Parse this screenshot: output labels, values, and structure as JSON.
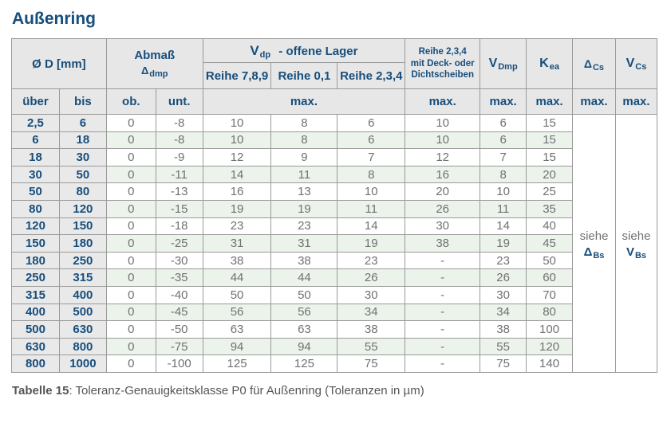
{
  "title": "Außenring",
  "colors": {
    "accent_navy": "#174e7c",
    "row_alt_green": "#ebf3eb",
    "header_gray": "#e7e7e7",
    "range_col_gray": "#e9e9e9",
    "border_gray": "#9a9a9a",
    "value_text_gray": "#717173"
  },
  "table": {
    "header": {
      "diameter": "Ø D  [mm]",
      "abmass_title": "Abmaß",
      "abmass_sym": "Δ",
      "abmass_sub": "dmp",
      "vdp_sym": "V",
      "vdp_sub": "dp",
      "vdp_suffix": "-  offene Lager",
      "reihe_789": "Reihe 7,8,9",
      "reihe_01": "Reihe 0,1",
      "reihe_234": "Reihe 2,3,4",
      "deck_line1": "Reihe 2,3,4",
      "deck_line2": "mit Deck- oder",
      "deck_line3": "Dichtscheiben",
      "vdmp_sym": "V",
      "vdmp_sub": "Dmp",
      "kea_sym": "K",
      "kea_sub": "ea",
      "delta_cs_sym": "Δ",
      "delta_cs_sub": "Cs",
      "v_cs_sym": "V",
      "v_cs_sub": "Cs",
      "col_ueber": "über",
      "col_bis": "bis",
      "col_ob": "ob.",
      "col_unt": "unt.",
      "max_label": "max."
    },
    "rows": [
      [
        "2,5",
        "6",
        "0",
        "-8",
        "10",
        "8",
        "6",
        "10",
        "6",
        "15"
      ],
      [
        "6",
        "18",
        "0",
        "-8",
        "10",
        "8",
        "6",
        "10",
        "6",
        "15"
      ],
      [
        "18",
        "30",
        "0",
        "-9",
        "12",
        "9",
        "7",
        "12",
        "7",
        "15"
      ],
      [
        "30",
        "50",
        "0",
        "-11",
        "14",
        "11",
        "8",
        "16",
        "8",
        "20"
      ],
      [
        "50",
        "80",
        "0",
        "-13",
        "16",
        "13",
        "10",
        "20",
        "10",
        "25"
      ],
      [
        "80",
        "120",
        "0",
        "-15",
        "19",
        "19",
        "11",
        "26",
        "11",
        "35"
      ],
      [
        "120",
        "150",
        "0",
        "-18",
        "23",
        "23",
        "14",
        "30",
        "14",
        "40"
      ],
      [
        "150",
        "180",
        "0",
        "-25",
        "31",
        "31",
        "19",
        "38",
        "19",
        "45"
      ],
      [
        "180",
        "250",
        "0",
        "-30",
        "38",
        "38",
        "23",
        "-",
        "23",
        "50"
      ],
      [
        "250",
        "315",
        "0",
        "-35",
        "44",
        "44",
        "26",
        "-",
        "26",
        "60"
      ],
      [
        "315",
        "400",
        "0",
        "-40",
        "50",
        "50",
        "30",
        "-",
        "30",
        "70"
      ],
      [
        "400",
        "500",
        "0",
        "-45",
        "56",
        "56",
        "34",
        "-",
        "34",
        "80"
      ],
      [
        "500",
        "630",
        "0",
        "-50",
        "63",
        "63",
        "38",
        "-",
        "38",
        "100"
      ],
      [
        "630",
        "800",
        "0",
        "-75",
        "94",
        "94",
        "55",
        "-",
        "55",
        "120"
      ],
      [
        "800",
        "1000",
        "0",
        "-100",
        "125",
        "125",
        "75",
        "-",
        "75",
        "140"
      ]
    ],
    "see_dbs": {
      "word": "siehe",
      "sym": "Δ",
      "sub": "Bs"
    },
    "see_vbs": {
      "word": "siehe",
      "sym": "V",
      "sub": "Bs"
    }
  },
  "caption": {
    "bold": "Tabelle 15",
    "rest": ": Toleranz-Genauigkeitsklasse P0 für Außenring (Toleranzen in µm)"
  }
}
